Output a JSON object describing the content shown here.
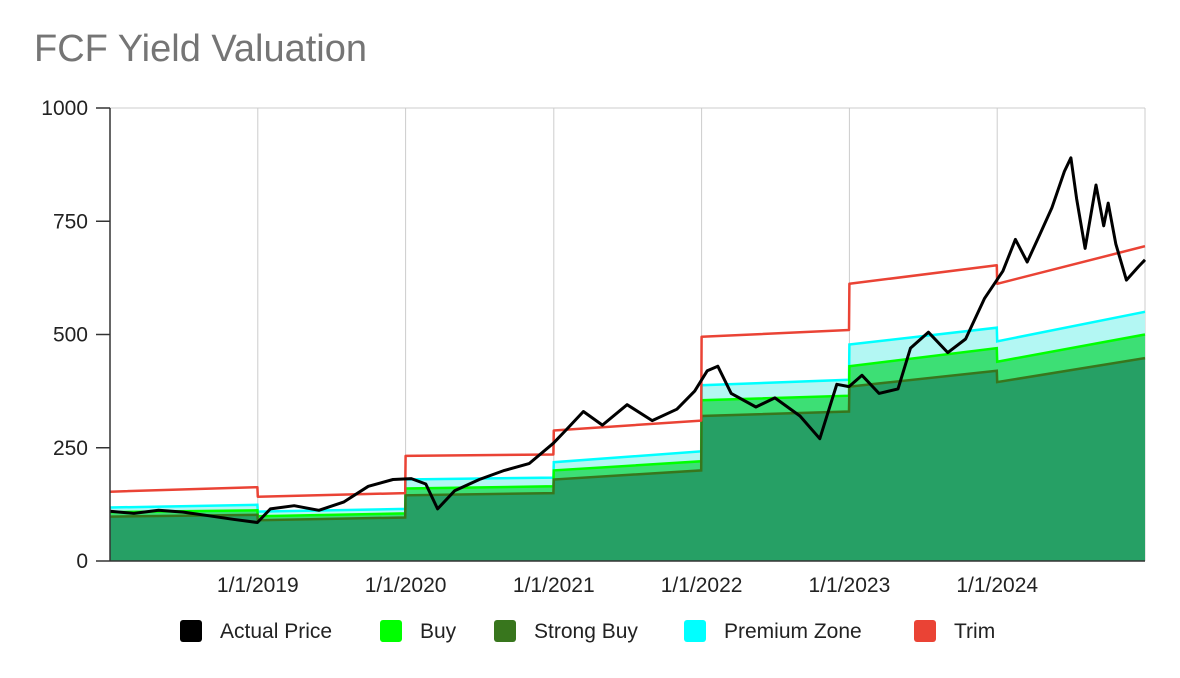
{
  "chart_data": {
    "type": "area",
    "title": "FCF Yield Valuation",
    "xlabel": "",
    "ylabel": "",
    "ylim": [
      0,
      1000
    ],
    "yticks": [
      "0",
      "250",
      "500",
      "750",
      "1000"
    ],
    "xlim": [
      "2018-01-01",
      "2024-12-31"
    ],
    "xticks": [
      {
        "date": "2019-01-01",
        "label": "1/1/2019"
      },
      {
        "date": "2020-01-01",
        "label": "1/1/2020"
      },
      {
        "date": "2021-01-01",
        "label": "1/1/2021"
      },
      {
        "date": "2022-01-01",
        "label": "1/1/2022"
      },
      {
        "date": "2023-01-01",
        "label": "1/1/2023"
      },
      {
        "date": "2024-01-01",
        "label": "1/1/2024"
      }
    ],
    "grid": true,
    "legend_position": "bottom",
    "series": [
      {
        "name": "Strong Buy",
        "color": "#38761d",
        "fill": "#26a065",
        "style": "area",
        "points": [
          [
            "2018-01-01",
            98
          ],
          [
            "2018-12-31",
            102
          ],
          [
            "2019-01-01",
            90
          ],
          [
            "2019-12-31",
            96
          ],
          [
            "2020-01-01",
            145
          ],
          [
            "2020-12-31",
            150
          ],
          [
            "2021-01-01",
            180
          ],
          [
            "2021-12-31",
            200
          ],
          [
            "2022-01-01",
            320
          ],
          [
            "2022-12-31",
            330
          ],
          [
            "2023-01-01",
            385
          ],
          [
            "2023-12-31",
            420
          ],
          [
            "2024-01-01",
            395
          ],
          [
            "2024-12-31",
            448
          ]
        ]
      },
      {
        "name": "Buy",
        "color": "#00ff00",
        "fill": "#3ddf75",
        "style": "area",
        "points": [
          [
            "2018-01-01",
            108
          ],
          [
            "2018-12-31",
            112
          ],
          [
            "2019-01-01",
            99
          ],
          [
            "2019-12-31",
            105
          ],
          [
            "2020-01-01",
            160
          ],
          [
            "2020-12-31",
            165
          ],
          [
            "2021-01-01",
            200
          ],
          [
            "2021-12-31",
            220
          ],
          [
            "2022-01-01",
            355
          ],
          [
            "2022-12-31",
            365
          ],
          [
            "2023-01-01",
            430
          ],
          [
            "2023-12-31",
            470
          ],
          [
            "2024-01-01",
            440
          ],
          [
            "2024-12-31",
            500
          ]
        ]
      },
      {
        "name": "Premium Zone",
        "color": "#00ffff",
        "fill": "#b3f7f3",
        "style": "area",
        "points": [
          [
            "2018-01-01",
            118
          ],
          [
            "2018-12-31",
            124
          ],
          [
            "2019-01-01",
            109
          ],
          [
            "2019-12-31",
            115
          ],
          [
            "2020-01-01",
            180
          ],
          [
            "2020-12-31",
            184
          ],
          [
            "2021-01-01",
            218
          ],
          [
            "2021-12-31",
            242
          ],
          [
            "2022-01-01",
            388
          ],
          [
            "2022-12-31",
            400
          ],
          [
            "2023-01-01",
            478
          ],
          [
            "2023-12-31",
            515
          ],
          [
            "2024-01-01",
            485
          ],
          [
            "2024-12-31",
            550
          ]
        ]
      },
      {
        "name": "Trim",
        "color": "#ea4335",
        "style": "line",
        "points": [
          [
            "2018-01-01",
            153
          ],
          [
            "2018-12-31",
            163
          ],
          [
            "2019-01-01",
            142
          ],
          [
            "2019-12-31",
            150
          ],
          [
            "2020-01-01",
            232
          ],
          [
            "2020-12-31",
            235
          ],
          [
            "2021-01-01",
            288
          ],
          [
            "2021-12-31",
            310
          ],
          [
            "2022-01-01",
            495
          ],
          [
            "2022-12-31",
            510
          ],
          [
            "2023-01-01",
            612
          ],
          [
            "2023-12-31",
            653
          ],
          [
            "2024-01-01",
            612
          ],
          [
            "2024-12-31",
            695
          ]
        ]
      },
      {
        "name": "Actual Price",
        "color": "#000000",
        "style": "line",
        "points": [
          [
            "2018-01-01",
            110
          ],
          [
            "2018-03-01",
            105
          ],
          [
            "2018-05-01",
            112
          ],
          [
            "2018-07-01",
            108
          ],
          [
            "2018-09-01",
            100
          ],
          [
            "2018-11-01",
            92
          ],
          [
            "2018-12-31",
            85
          ],
          [
            "2019-02-01",
            115
          ],
          [
            "2019-04-01",
            122
          ],
          [
            "2019-06-01",
            112
          ],
          [
            "2019-08-01",
            130
          ],
          [
            "2019-10-01",
            165
          ],
          [
            "2019-12-01",
            180
          ],
          [
            "2020-01-15",
            182
          ],
          [
            "2020-02-20",
            170
          ],
          [
            "2020-03-20",
            115
          ],
          [
            "2020-05-01",
            155
          ],
          [
            "2020-07-01",
            180
          ],
          [
            "2020-09-01",
            200
          ],
          [
            "2020-11-01",
            215
          ],
          [
            "2020-12-31",
            260
          ],
          [
            "2021-02-01",
            290
          ],
          [
            "2021-03-15",
            330
          ],
          [
            "2021-05-01",
            300
          ],
          [
            "2021-07-01",
            345
          ],
          [
            "2021-09-01",
            310
          ],
          [
            "2021-11-01",
            335
          ],
          [
            "2021-12-15",
            375
          ],
          [
            "2022-01-15",
            420
          ],
          [
            "2022-02-10",
            430
          ],
          [
            "2022-03-15",
            370
          ],
          [
            "2022-05-15",
            340
          ],
          [
            "2022-07-01",
            360
          ],
          [
            "2022-09-01",
            320
          ],
          [
            "2022-10-20",
            270
          ],
          [
            "2022-12-01",
            390
          ],
          [
            "2022-12-31",
            385
          ],
          [
            "2023-02-01",
            410
          ],
          [
            "2023-03-15",
            370
          ],
          [
            "2023-05-01",
            380
          ],
          [
            "2023-06-01",
            470
          ],
          [
            "2023-07-15",
            505
          ],
          [
            "2023-09-01",
            460
          ],
          [
            "2023-10-15",
            490
          ],
          [
            "2023-12-01",
            580
          ],
          [
            "2024-01-15",
            640
          ],
          [
            "2024-02-15",
            710
          ],
          [
            "2024-03-15",
            660
          ],
          [
            "2024-04-15",
            720
          ],
          [
            "2024-05-15",
            780
          ],
          [
            "2024-06-15",
            860
          ],
          [
            "2024-07-01",
            890
          ],
          [
            "2024-07-15",
            800
          ],
          [
            "2024-08-05",
            690
          ],
          [
            "2024-09-01",
            830
          ],
          [
            "2024-09-20",
            740
          ],
          [
            "2024-10-01",
            790
          ],
          [
            "2024-10-20",
            700
          ],
          [
            "2024-11-15",
            620
          ],
          [
            "2024-12-15",
            650
          ],
          [
            "2024-12-31",
            665
          ]
        ]
      }
    ],
    "legend": [
      {
        "name": "Actual Price",
        "color": "#000000"
      },
      {
        "name": "Buy",
        "color": "#00ff00"
      },
      {
        "name": "Strong Buy",
        "color": "#38761d"
      },
      {
        "name": "Premium Zone",
        "color": "#00ffff"
      },
      {
        "name": "Trim",
        "color": "#ea4335"
      }
    ]
  }
}
